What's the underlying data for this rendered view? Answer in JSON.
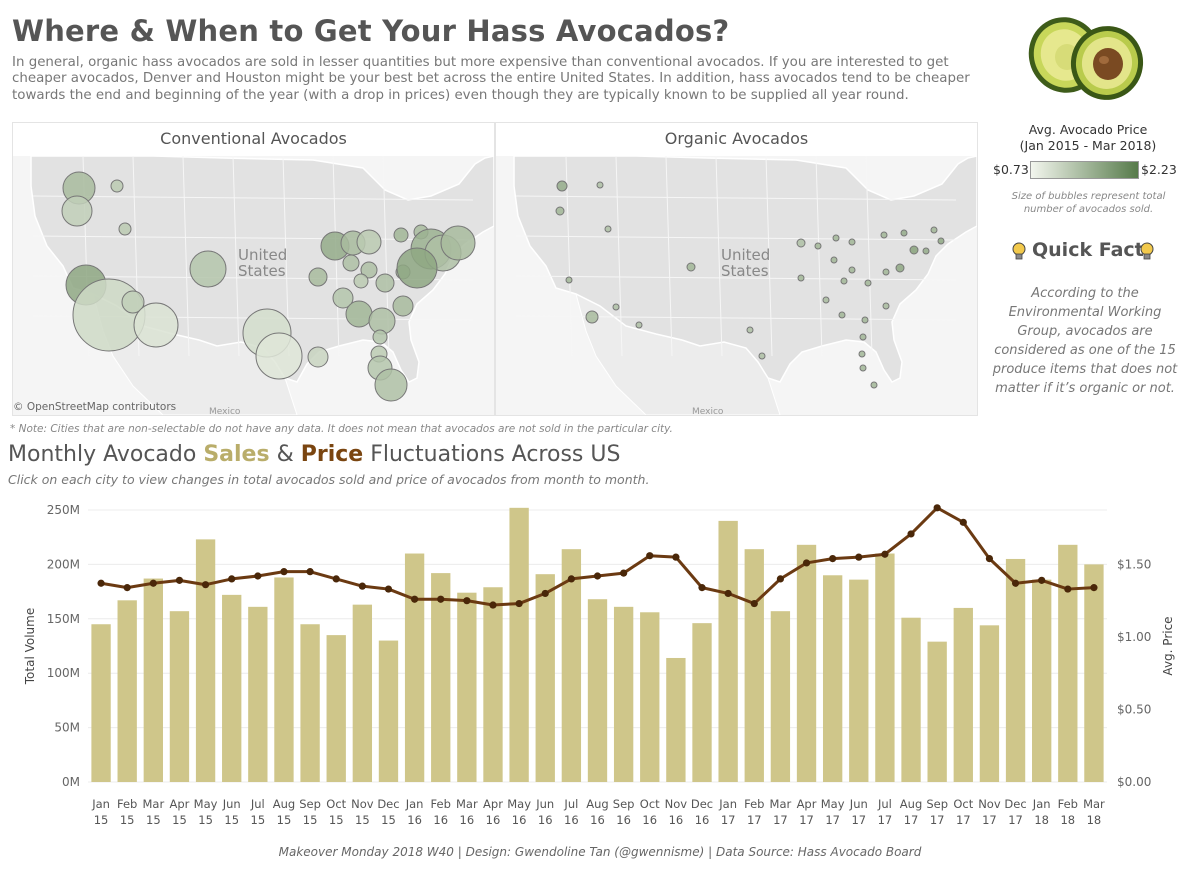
{
  "header": {
    "title": "Where & When to Get Your Hass Avocados?",
    "intro": "In general, organic hass avocados are sold in lesser quantities but more expensive than conventional avocados. If you are interested to get cheaper avocados, Denver and Houston might be your best bet across the entire United States. In addition, hass avocados tend to be cheaper towards the end and beginning of the year (with a drop in prices) even though they are typically known to be supplied all year round."
  },
  "maps": {
    "conventional_title": "Conventional Avocados",
    "organic_title": "Organic Avocados",
    "country_label": [
      "United",
      "States"
    ],
    "mexico_label": "Mexico",
    "attribution": "© OpenStreetMap contributors",
    "note": "* Note: Cities that are non-selectable do not have any data. It does not mean that avocados are not sold in the particular city."
  },
  "legend": {
    "title_line1": "Avg. Avocado Price",
    "title_line2": "(Jan 2015 - Mar 2018)",
    "min_label": "$0.73",
    "max_label": "$2.23",
    "bubble_note": "Size of bubbles represent total number of avocados sold."
  },
  "quick_fact": {
    "title": "Quick Fact",
    "text": "According to the Environmental Working Group, avocados are considered as one of the 15 produce items that does not matter if it’s organic or not."
  },
  "section": {
    "title_pre": "Monthly Avocado ",
    "title_sales": "Sales",
    "title_amp": " & ",
    "title_price": "Price",
    "title_post": " Fluctuations Across US",
    "subtitle": "Click on each city to view changes in total avocados sold and price of avocados from month to month."
  },
  "footer": "Makeover Monday 2018 W40 | Design: Gwendoline Tan (@gwennisme) | Data Source: Hass Avocado Board",
  "colors": {
    "bar": "#cfc68a",
    "line": "#6b3a12",
    "map_land": "#e3e3e3",
    "bubble_dark": "#6e8e60",
    "bubble_light": "#eef2e8"
  },
  "chart_data": {
    "type": "bar",
    "categories": [
      "Jan 15",
      "Feb 15",
      "Mar 15",
      "Apr 15",
      "May 15",
      "Jun 15",
      "Jul 15",
      "Aug 15",
      "Sep 15",
      "Oct 15",
      "Nov 15",
      "Dec 15",
      "Jan 16",
      "Feb 16",
      "Mar 16",
      "Apr 16",
      "May 16",
      "Jun 16",
      "Jul 16",
      "Aug 16",
      "Sep 16",
      "Oct 16",
      "Nov 16",
      "Dec 16",
      "Jan 17",
      "Feb 17",
      "Mar 17",
      "Apr 17",
      "May 17",
      "Jun 17",
      "Jul 17",
      "Aug 17",
      "Sep 17",
      "Oct 17",
      "Nov 17",
      "Dec 17",
      "Jan 18",
      "Feb 18",
      "Mar 18"
    ],
    "x_ticks": [
      [
        "Jan",
        "15"
      ],
      [
        "Feb",
        "15"
      ],
      [
        "Mar",
        "15"
      ],
      [
        "Apr",
        "15"
      ],
      [
        "May",
        "15"
      ],
      [
        "Jun",
        "15"
      ],
      [
        "Jul",
        "15"
      ],
      [
        "Aug",
        "15"
      ],
      [
        "Sep",
        "15"
      ],
      [
        "Oct",
        "15"
      ],
      [
        "Nov",
        "15"
      ],
      [
        "Dec",
        "15"
      ],
      [
        "Jan",
        "16"
      ],
      [
        "Feb",
        "16"
      ],
      [
        "Mar",
        "16"
      ],
      [
        "Apr",
        "16"
      ],
      [
        "May",
        "16"
      ],
      [
        "Jun",
        "16"
      ],
      [
        "Jul",
        "16"
      ],
      [
        "Aug",
        "16"
      ],
      [
        "Sep",
        "16"
      ],
      [
        "Oct",
        "16"
      ],
      [
        "Nov",
        "16"
      ],
      [
        "Dec",
        "16"
      ],
      [
        "Jan",
        "17"
      ],
      [
        "Feb",
        "17"
      ],
      [
        "Mar",
        "17"
      ],
      [
        "Apr",
        "17"
      ],
      [
        "May",
        "17"
      ],
      [
        "Jun",
        "17"
      ],
      [
        "Jul",
        "17"
      ],
      [
        "Aug",
        "17"
      ],
      [
        "Sep",
        "17"
      ],
      [
        "Oct",
        "17"
      ],
      [
        "Nov",
        "17"
      ],
      [
        "Dec",
        "17"
      ],
      [
        "Jan",
        "18"
      ],
      [
        "Feb",
        "18"
      ],
      [
        "Mar",
        "18"
      ]
    ],
    "series": [
      {
        "name": "Total Volume",
        "type": "bar",
        "axis": "left",
        "values": [
          145,
          167,
          187,
          157,
          223,
          172,
          161,
          188,
          145,
          135,
          163,
          130,
          210,
          192,
          174,
          179,
          252,
          191,
          214,
          168,
          161,
          156,
          114,
          146,
          240,
          214,
          157,
          218,
          190,
          186,
          210,
          151,
          129,
          160,
          144,
          205,
          186,
          218,
          200
        ]
      },
      {
        "name": "Avg. Price",
        "type": "line",
        "axis": "right",
        "values": [
          1.37,
          1.34,
          1.37,
          1.39,
          1.36,
          1.4,
          1.42,
          1.45,
          1.45,
          1.4,
          1.35,
          1.33,
          1.26,
          1.26,
          1.25,
          1.22,
          1.23,
          1.3,
          1.4,
          1.42,
          1.44,
          1.56,
          1.55,
          1.34,
          1.3,
          1.23,
          1.4,
          1.51,
          1.54,
          1.55,
          1.57,
          1.71,
          1.89,
          1.79,
          1.54,
          1.37,
          1.39,
          1.33,
          1.34
        ]
      }
    ],
    "ylabel": "Total Volume",
    "y2label": "Avg. Price",
    "ylim": [
      0,
      250
    ],
    "y_ticks": [
      0,
      50,
      100,
      150,
      200,
      250
    ],
    "y_tick_labels": [
      "0M",
      "50M",
      "100M",
      "150M",
      "200M",
      "250M"
    ],
    "y2lim": [
      0,
      1.875
    ],
    "y2_ticks": [
      0,
      0.5,
      1.0,
      1.5
    ],
    "y2_tick_labels": [
      "$0.00",
      "$0.50",
      "$1.00",
      "$1.50"
    ],
    "grid": true
  }
}
